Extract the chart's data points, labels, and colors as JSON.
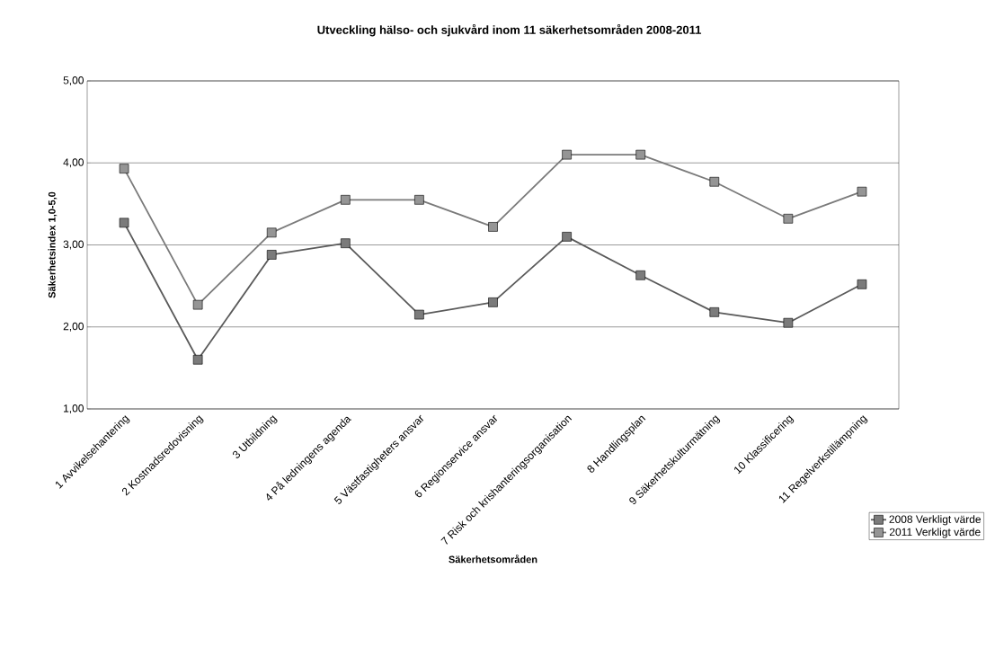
{
  "chart_data": {
    "type": "line",
    "title": "Utveckling hälso- och sjukvård inom 11 säkerhetsområden 2008-2011",
    "xlabel": "Säkerhetsområden",
    "ylabel": "Säkerhetsindex 1,0-5,0",
    "categories": [
      "1 Avvikelsehantering",
      "2 Kostnadsredovisning",
      "3 Utbildning",
      "4 På ledningens agenda",
      "5 Västfastigheters ansvar",
      "6 Regionservice ansvar",
      "7 Risk och krishanteringsorganisation",
      "8 Handlingsplan",
      "9 Säkerhetskulturmätning",
      "10 Klassificering",
      "11 Regelverkstillämpning"
    ],
    "series": [
      {
        "name": "2008 Verkligt värde",
        "color": "#5a5a5a",
        "values": [
          3.27,
          1.6,
          2.88,
          3.02,
          2.15,
          2.3,
          3.1,
          2.63,
          2.18,
          2.05,
          2.52
        ]
      },
      {
        "name": "2011 Verkligt värde",
        "color": "#7a7a7a",
        "values": [
          3.93,
          2.27,
          3.15,
          3.55,
          3.55,
          3.22,
          4.1,
          4.1,
          3.77,
          3.32,
          3.65
        ]
      }
    ],
    "ylim": [
      1,
      5
    ],
    "yticks": [
      {
        "value": 1,
        "label": "1,00"
      },
      {
        "value": 2,
        "label": "2,00"
      },
      {
        "value": 3,
        "label": "3,00"
      },
      {
        "value": 4,
        "label": "4,00"
      },
      {
        "value": 5,
        "label": "5,00"
      }
    ],
    "grid": "y",
    "legend": "right",
    "marker": "square",
    "line_style": "solid"
  }
}
